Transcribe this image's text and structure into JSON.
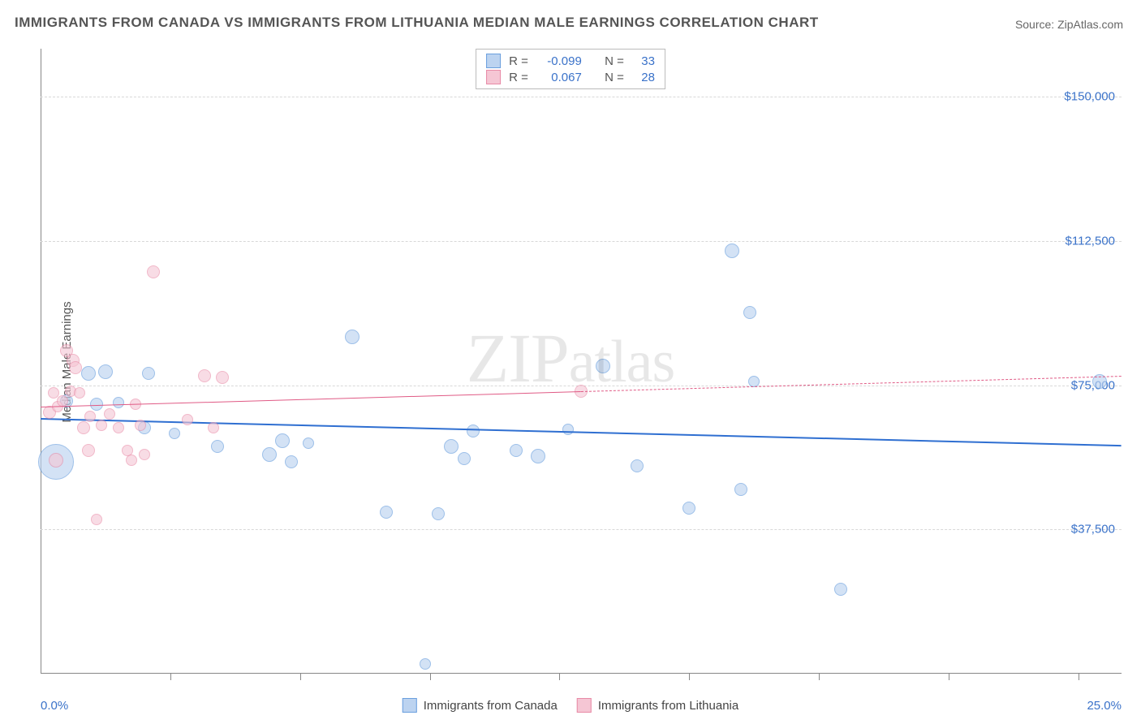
{
  "title": "IMMIGRANTS FROM CANADA VS IMMIGRANTS FROM LITHUANIA MEDIAN MALE EARNINGS CORRELATION CHART",
  "source": "Source: ZipAtlas.com",
  "watermark": "ZIPatlas",
  "ylabel": "Median Male Earnings",
  "chart": {
    "type": "scatter",
    "xlim": [
      0.0,
      25.0
    ],
    "ylim": [
      0,
      162500
    ],
    "background_color": "#ffffff",
    "grid_color": "#d8d8d8",
    "grid_style": "dashed",
    "axis_color": "#888888",
    "tick_font_color": "#3a72c9",
    "xaxis_labels": [
      {
        "value": "0.0%",
        "pos": 0.0
      },
      {
        "value": "25.0%",
        "pos": 25.0
      }
    ],
    "yaxis_ticks": [
      {
        "value": 37500,
        "label": "$37,500"
      },
      {
        "value": 75000,
        "label": "$75,000"
      },
      {
        "value": 112500,
        "label": "$112,500"
      },
      {
        "value": 150000,
        "label": "$150,000"
      }
    ],
    "xtick_positions": [
      3,
      6,
      9,
      12,
      15,
      18,
      21,
      24
    ],
    "series": [
      {
        "id": "canada",
        "label": "Immigrants from Canada",
        "fill": "#bcd3f0",
        "stroke": "#6a9fde",
        "fill_opacity": 0.65,
        "trend": {
          "x1": 0,
          "y1": 66500,
          "x2": 25,
          "y2": 59500,
          "color": "#2f6fd1",
          "width": 2,
          "dashed": false
        },
        "R": "-0.099",
        "N": "33",
        "points": [
          {
            "x": 0.35,
            "y": 55000,
            "r": 22
          },
          {
            "x": 0.6,
            "y": 71000,
            "r": 8
          },
          {
            "x": 1.1,
            "y": 78000,
            "r": 9
          },
          {
            "x": 1.3,
            "y": 70000,
            "r": 8
          },
          {
            "x": 1.5,
            "y": 78500,
            "r": 9
          },
          {
            "x": 1.8,
            "y": 70500,
            "r": 7
          },
          {
            "x": 2.5,
            "y": 78000,
            "r": 8
          },
          {
            "x": 2.4,
            "y": 64000,
            "r": 8
          },
          {
            "x": 3.1,
            "y": 62500,
            "r": 7
          },
          {
            "x": 4.1,
            "y": 59000,
            "r": 8
          },
          {
            "x": 5.3,
            "y": 57000,
            "r": 9
          },
          {
            "x": 5.6,
            "y": 60500,
            "r": 9
          },
          {
            "x": 5.8,
            "y": 55000,
            "r": 8
          },
          {
            "x": 6.2,
            "y": 60000,
            "r": 7
          },
          {
            "x": 7.2,
            "y": 87500,
            "r": 9
          },
          {
            "x": 8.0,
            "y": 42000,
            "r": 8
          },
          {
            "x": 8.9,
            "y": 2500,
            "r": 7
          },
          {
            "x": 9.2,
            "y": 41500,
            "r": 8
          },
          {
            "x": 9.5,
            "y": 59000,
            "r": 9
          },
          {
            "x": 9.8,
            "y": 56000,
            "r": 8
          },
          {
            "x": 10.0,
            "y": 63000,
            "r": 8
          },
          {
            "x": 11.0,
            "y": 58000,
            "r": 8
          },
          {
            "x": 11.5,
            "y": 56500,
            "r": 9
          },
          {
            "x": 12.2,
            "y": 63500,
            "r": 7
          },
          {
            "x": 13.0,
            "y": 80000,
            "r": 9
          },
          {
            "x": 13.8,
            "y": 54000,
            "r": 8
          },
          {
            "x": 15.0,
            "y": 43000,
            "r": 8
          },
          {
            "x": 16.0,
            "y": 110000,
            "r": 9
          },
          {
            "x": 16.2,
            "y": 48000,
            "r": 8
          },
          {
            "x": 16.4,
            "y": 94000,
            "r": 8
          },
          {
            "x": 16.5,
            "y": 76000,
            "r": 7
          },
          {
            "x": 18.5,
            "y": 22000,
            "r": 8
          },
          {
            "x": 24.5,
            "y": 76000,
            "r": 9
          }
        ]
      },
      {
        "id": "lithuania",
        "label": "Immigrants from Lithuania",
        "fill": "#f5c6d4",
        "stroke": "#e88aa6",
        "fill_opacity": 0.6,
        "trend": {
          "x1": 0,
          "y1": 69500,
          "x2": 12.5,
          "y2": 73500,
          "color": "#e05a85",
          "width": 1.8,
          "dashed": false,
          "dashed_ext": {
            "x1": 12.5,
            "y1": 73500,
            "x2": 25,
            "y2": 77500
          }
        },
        "R": "0.067",
        "N": "28",
        "points": [
          {
            "x": 0.2,
            "y": 68000,
            "r": 8
          },
          {
            "x": 0.3,
            "y": 73000,
            "r": 7
          },
          {
            "x": 0.35,
            "y": 55500,
            "r": 9
          },
          {
            "x": 0.4,
            "y": 69500,
            "r": 7
          },
          {
            "x": 0.5,
            "y": 71000,
            "r": 7
          },
          {
            "x": 0.6,
            "y": 84000,
            "r": 8
          },
          {
            "x": 0.7,
            "y": 73500,
            "r": 7
          },
          {
            "x": 0.75,
            "y": 81500,
            "r": 8
          },
          {
            "x": 0.8,
            "y": 79500,
            "r": 8
          },
          {
            "x": 0.9,
            "y": 73000,
            "r": 7
          },
          {
            "x": 1.0,
            "y": 64000,
            "r": 8
          },
          {
            "x": 1.1,
            "y": 58000,
            "r": 8
          },
          {
            "x": 1.15,
            "y": 67000,
            "r": 7
          },
          {
            "x": 1.3,
            "y": 40000,
            "r": 7
          },
          {
            "x": 1.4,
            "y": 64500,
            "r": 7
          },
          {
            "x": 1.6,
            "y": 67500,
            "r": 7
          },
          {
            "x": 1.8,
            "y": 64000,
            "r": 7
          },
          {
            "x": 2.0,
            "y": 58000,
            "r": 7
          },
          {
            "x": 2.1,
            "y": 55500,
            "r": 7
          },
          {
            "x": 2.2,
            "y": 70000,
            "r": 7
          },
          {
            "x": 2.3,
            "y": 64500,
            "r": 7
          },
          {
            "x": 2.4,
            "y": 57000,
            "r": 7
          },
          {
            "x": 2.6,
            "y": 104500,
            "r": 8
          },
          {
            "x": 3.4,
            "y": 66000,
            "r": 7
          },
          {
            "x": 3.8,
            "y": 77500,
            "r": 8
          },
          {
            "x": 4.2,
            "y": 77000,
            "r": 8
          },
          {
            "x": 4.0,
            "y": 64000,
            "r": 7
          },
          {
            "x": 12.5,
            "y": 73500,
            "r": 8
          }
        ]
      }
    ]
  },
  "top_legend": {
    "rows": [
      {
        "series": "canada",
        "R_label": "R =",
        "N_label": "N ="
      },
      {
        "series": "lithuania",
        "R_label": "R =",
        "N_label": "N ="
      }
    ]
  }
}
